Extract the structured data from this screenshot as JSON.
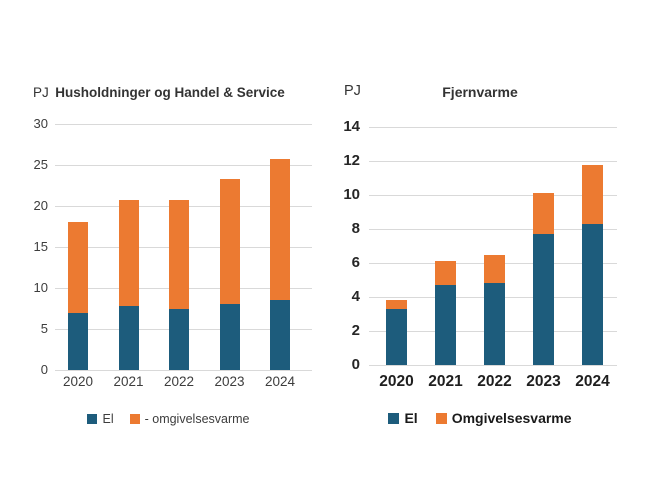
{
  "colors": {
    "el": "#1D5C7C",
    "omgivelsesvarme": "#EC7A31",
    "gridline": "#D9D9D9"
  },
  "chart_data": [
    {
      "type": "bar",
      "stacked": true,
      "title": "Husholdninger og Handel & Service",
      "unit_label": "PJ",
      "categories": [
        "2020",
        "2021",
        "2022",
        "2023",
        "2024"
      ],
      "series": [
        {
          "name": "El",
          "color_key": "el",
          "values": [
            7.0,
            7.8,
            7.5,
            8.1,
            8.5
          ]
        },
        {
          "name": "- omgivelsesvarme",
          "color_key": "omgivelsesvarme",
          "values": [
            11.1,
            12.9,
            13.2,
            15.2,
            17.2
          ]
        }
      ],
      "ylim": [
        0,
        30
      ],
      "ytick_step": 5,
      "grid": true,
      "legend_position": "bottom"
    },
    {
      "type": "bar",
      "stacked": true,
      "title": "Fjernvarme",
      "unit_label": "PJ",
      "categories": [
        "2020",
        "2021",
        "2022",
        "2023",
        "2024"
      ],
      "series": [
        {
          "name": "El",
          "color_key": "el",
          "values": [
            3.3,
            4.7,
            4.8,
            7.7,
            8.3
          ]
        },
        {
          "name": "Omgivelsesvarme",
          "color_key": "omgivelsesvarme",
          "values": [
            0.55,
            1.4,
            1.65,
            2.4,
            3.45
          ]
        }
      ],
      "ylim": [
        0,
        14
      ],
      "ytick_step": 2,
      "grid": true,
      "legend_position": "bottom"
    }
  ]
}
